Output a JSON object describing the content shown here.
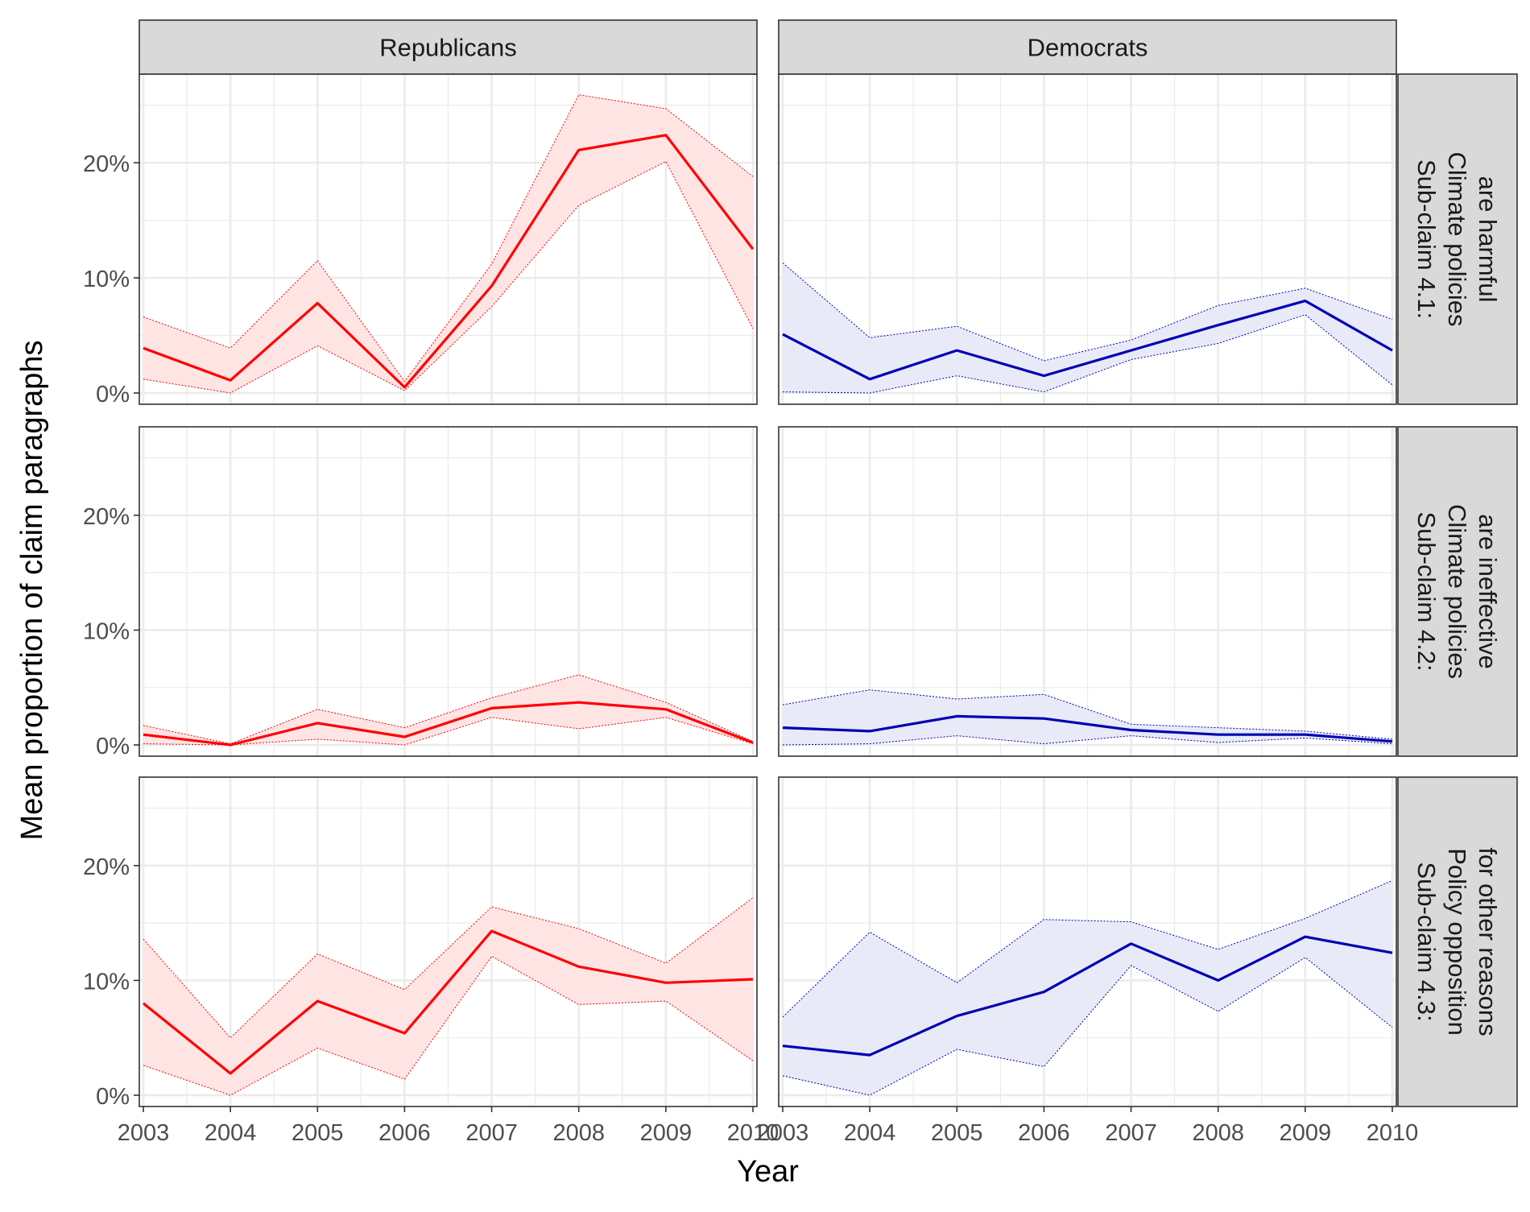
{
  "figure": {
    "ylabel": "Mean proportion of claim paragraphs",
    "xlabel": "Year",
    "col_strips": [
      "Republicans",
      "Democrats"
    ],
    "row_strips": [
      [
        "Sub-claim 4.1:",
        "Climate policies",
        "are harmful"
      ],
      [
        "Sub-claim 4.2:",
        "Climate policies",
        "are ineffective"
      ],
      [
        "Sub-claim 4.3:",
        "Policy opposition",
        "for other reasons"
      ]
    ],
    "y_ticks": [
      "0%",
      "10%",
      "20%"
    ],
    "x_ticks": [
      "2003",
      "2004",
      "2005",
      "2006",
      "2007",
      "2008",
      "2009",
      "2010"
    ]
  },
  "colors": {
    "republicans": "#ff0000",
    "democrats": "#0000b4",
    "republicans_ribbon": "#ffe4e4",
    "democrats_ribbon": "#e8eaf7",
    "strip_fill": "#d9d9d9",
    "grid": "#ebebeb"
  },
  "chart_data": {
    "type": "line",
    "facet_rows": [
      "Sub-claim 4.1: Climate policies are harmful",
      "Sub-claim 4.2: Climate policies are ineffective",
      "Sub-claim 4.3: Policy opposition for other reasons"
    ],
    "facet_cols": [
      "Republicans",
      "Democrats"
    ],
    "x": [
      2003,
      2004,
      2005,
      2006,
      2007,
      2008,
      2009,
      2010
    ],
    "ylim": [
      0,
      27
    ],
    "y_unit": "%",
    "grid": true,
    "panels": [
      {
        "row": 0,
        "col": 0,
        "mean": [
          3.9,
          1.1,
          7.8,
          0.5,
          9.3,
          21.1,
          22.4,
          12.5
        ],
        "lower": [
          1.2,
          0.0,
          4.1,
          0.2,
          7.5,
          16.3,
          20.1,
          5.6
        ],
        "upper": [
          6.6,
          3.9,
          11.5,
          1.0,
          11.2,
          25.9,
          24.7,
          18.8
        ]
      },
      {
        "row": 0,
        "col": 1,
        "mean": [
          5.1,
          1.2,
          3.7,
          1.5,
          3.7,
          5.9,
          8.0,
          3.7
        ],
        "lower": [
          0.1,
          0.0,
          1.5,
          0.1,
          2.9,
          4.3,
          6.8,
          0.7
        ],
        "upper": [
          11.3,
          4.8,
          5.8,
          2.8,
          4.6,
          7.6,
          9.1,
          6.4
        ]
      },
      {
        "row": 1,
        "col": 0,
        "mean": [
          0.9,
          0.0,
          1.9,
          0.7,
          3.2,
          3.7,
          3.1,
          0.2
        ],
        "lower": [
          0.1,
          0.0,
          0.5,
          0.0,
          2.4,
          1.4,
          2.4,
          0.1
        ],
        "upper": [
          1.7,
          0.1,
          3.1,
          1.5,
          4.1,
          6.1,
          3.7,
          0.3
        ]
      },
      {
        "row": 1,
        "col": 1,
        "mean": [
          1.5,
          1.2,
          2.5,
          2.3,
          1.3,
          0.9,
          0.9,
          0.3
        ],
        "lower": [
          0.0,
          0.1,
          0.8,
          0.1,
          0.8,
          0.2,
          0.6,
          0.1
        ],
        "upper": [
          3.5,
          4.8,
          4.0,
          4.4,
          1.8,
          1.5,
          1.2,
          0.5
        ]
      },
      {
        "row": 2,
        "col": 0,
        "mean": [
          8.0,
          1.9,
          8.2,
          5.4,
          14.3,
          11.2,
          9.8,
          10.1
        ],
        "lower": [
          2.6,
          0.0,
          4.1,
          1.4,
          12.1,
          7.9,
          8.2,
          3.0
        ],
        "upper": [
          13.6,
          5.0,
          12.3,
          9.2,
          16.4,
          14.5,
          11.5,
          17.2
        ]
      },
      {
        "row": 2,
        "col": 1,
        "mean": [
          4.3,
          3.5,
          6.9,
          9.0,
          13.2,
          10.0,
          13.8,
          12.4
        ],
        "lower": [
          1.7,
          0.0,
          4.0,
          2.5,
          11.3,
          7.3,
          12.0,
          5.9
        ],
        "upper": [
          6.8,
          14.2,
          9.8,
          15.3,
          15.1,
          12.7,
          15.4,
          18.7
        ]
      }
    ]
  }
}
